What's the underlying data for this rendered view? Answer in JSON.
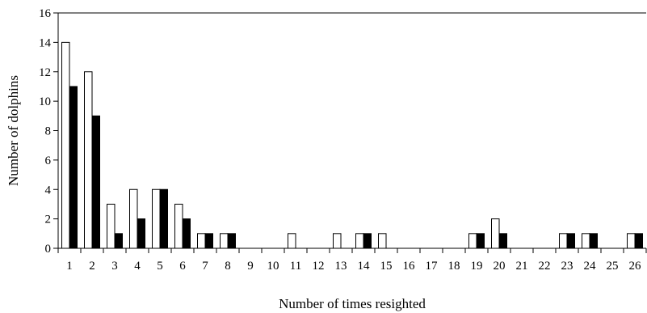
{
  "chart_data": {
    "type": "bar",
    "title": "",
    "xlabel": "Number of times resighted",
    "ylabel": "Number of dolphins",
    "ylim": [
      0,
      16
    ],
    "yticks": [
      0,
      2,
      4,
      6,
      8,
      10,
      12,
      14,
      16
    ],
    "grid": false,
    "legend": "none",
    "categories": [
      "1",
      "2",
      "3",
      "4",
      "5",
      "6",
      "7",
      "8",
      "9",
      "10",
      "11",
      "12",
      "13",
      "14",
      "15",
      "16",
      "17",
      "18",
      "19",
      "20",
      "21",
      "22",
      "23",
      "24",
      "25",
      "26"
    ],
    "series": [
      {
        "color": "#ffffff",
        "values": [
          14,
          12,
          3,
          4,
          4,
          3,
          1,
          1,
          0,
          0,
          1,
          0,
          1,
          1,
          1,
          0,
          0,
          0,
          1,
          2,
          0,
          0,
          1,
          1,
          0,
          1
        ]
      },
      {
        "color": "#000000",
        "values": [
          11,
          9,
          1,
          2,
          4,
          2,
          1,
          1,
          0,
          0,
          0,
          0,
          0,
          1,
          0,
          0,
          0,
          0,
          1,
          1,
          0,
          0,
          1,
          1,
          0,
          1
        ]
      }
    ]
  }
}
